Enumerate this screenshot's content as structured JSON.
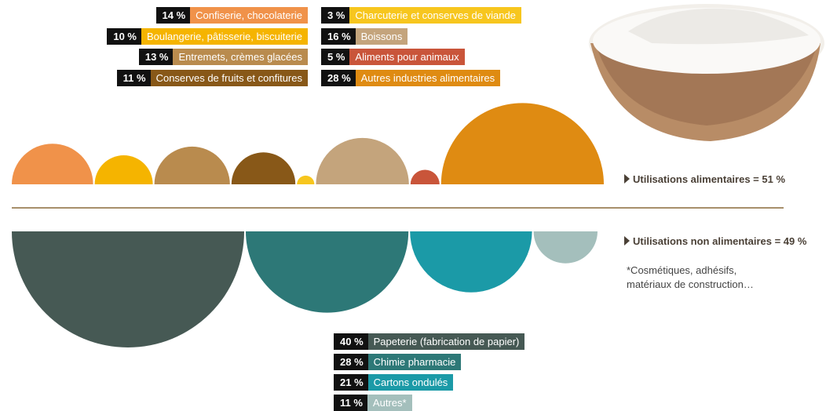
{
  "chart_data": [
    {
      "type": "semicircle",
      "direction": "up",
      "summary": "Utilisations alimentaires = 51 %",
      "categories": [
        "Confiserie, chocolaterie",
        "Boulangerie, pâtisserie, biscuiterie",
        "Entremets, crèmes glacées",
        "Conserves de fruits et confitures",
        "Charcuterie et conserves de viande",
        "Boissons",
        "Aliments pour animaux",
        "Autres industries alimentaires"
      ],
      "values": [
        14,
        10,
        13,
        11,
        3,
        16,
        5,
        28
      ],
      "value_labels": [
        "14 %",
        "10 %",
        "13 %",
        "11 %",
        "3 %",
        "16 %",
        "5 %",
        "28 %"
      ],
      "colors": [
        "#f0924a",
        "#f5b400",
        "#b98b4e",
        "#885818",
        "#f7c61e",
        "#c4a47c",
        "#c9553a",
        "#df8b12"
      ]
    },
    {
      "type": "semicircle",
      "direction": "down",
      "summary": "Utilisations non alimentaires = 49 %",
      "note": "*Cosmétiques, adhésifs, matériaux de construction…",
      "categories": [
        "Papeterie (fabrication de papier)",
        "Chimie pharmacie",
        "Cartons ondulés",
        "Autres*"
      ],
      "values": [
        40,
        28,
        21,
        11
      ],
      "value_labels": [
        "40 %",
        "28 %",
        "21 %",
        "11 %"
      ],
      "colors": [
        "#465954",
        "#2d7877",
        "#1b9aa7",
        "#a4bfbc"
      ]
    }
  ]
}
